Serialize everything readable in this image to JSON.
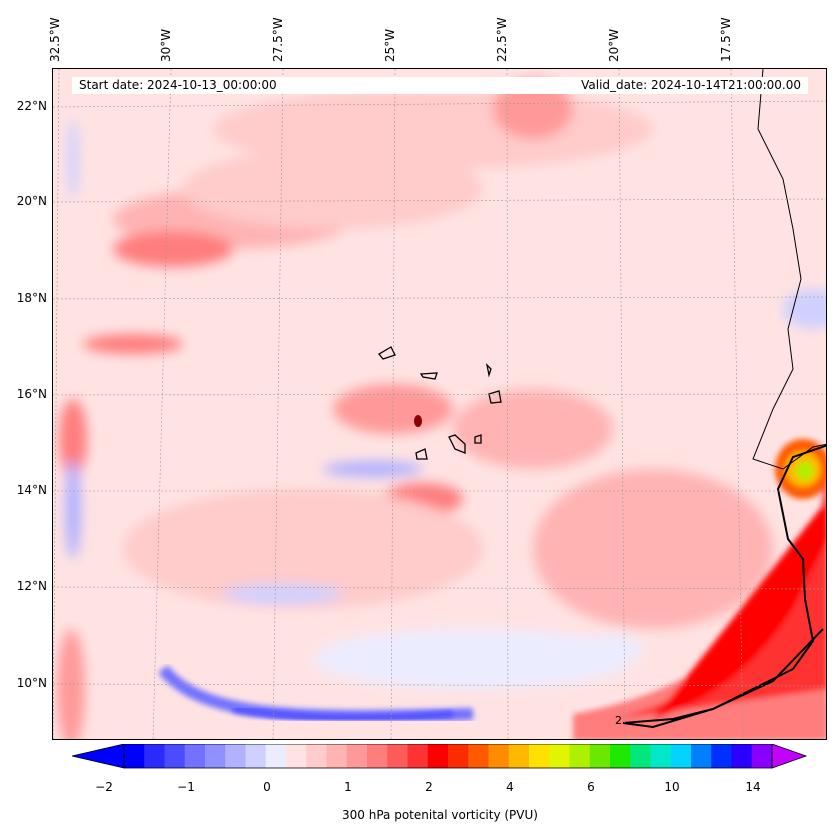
{
  "map": {
    "start_date": "Start date: 2024-10-13_00:00:00",
    "valid_date": "Valid_date: 2024-10-14T21:00:00.00",
    "lon_labels": [
      "32.5°W",
      "30°W",
      "27.5°W",
      "25°W",
      "22.5°W",
      "20°W",
      "17.5°W"
    ],
    "lat_labels": [
      "22°N",
      "20°N",
      "18°N",
      "16°N",
      "14°N",
      "12°N",
      "10°N"
    ],
    "contour_label": "2"
  },
  "colorbar": {
    "tick_labels": [
      "−2",
      "−1",
      "0",
      "1",
      "2",
      "4",
      "6",
      "10",
      "14"
    ],
    "label": "300 hPa potenital vorticity (PVU)",
    "colors": [
      "#0000ff",
      "#2a2aff",
      "#4c4cff",
      "#7272ff",
      "#9090ff",
      "#b1b1ff",
      "#d0d0ff",
      "#ececff",
      "#ffe3e3",
      "#ffcbcb",
      "#ffb3b3",
      "#ff9999",
      "#ff7d7d",
      "#ff5b5b",
      "#ff3333",
      "#ff0000",
      "#ff2b00",
      "#ff5a00",
      "#ff8c00",
      "#ffb800",
      "#ffe100",
      "#e2f500",
      "#aef000",
      "#6ae800",
      "#1ee800",
      "#00e87a",
      "#00e8c8",
      "#00d4ff",
      "#0080ff",
      "#0030ff",
      "#2a00ff",
      "#8a00ff"
    ],
    "extend_min_color": "#0000ff",
    "extend_max_color": "#c400ff"
  }
}
